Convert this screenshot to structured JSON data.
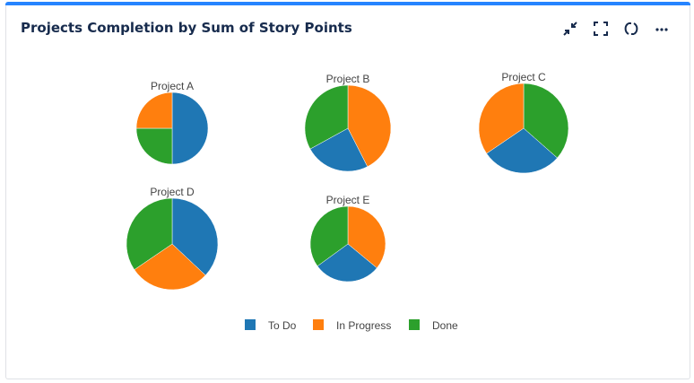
{
  "header": {
    "title": "Projects Completion by Sum of Story Points"
  },
  "toolbar": {
    "icons": [
      "collapse-icon",
      "fullscreen-icon",
      "refresh-icon",
      "more-icon"
    ]
  },
  "chart_data": {
    "type": "pie",
    "title": "",
    "legend": {
      "position": "bottom",
      "entries": [
        "To Do",
        "In Progress",
        "Done"
      ]
    },
    "colors": {
      "To Do": "#1f77b4",
      "In Progress": "#ff7f0e",
      "Done": "#2ca02c"
    },
    "pies": [
      {
        "name": "Project A",
        "slices": [
          {
            "label": "To Do",
            "value": 50
          },
          {
            "label": "Done",
            "value": 25
          },
          {
            "label": "In Progress",
            "value": 25
          }
        ]
      },
      {
        "name": "Project B",
        "slices": [
          {
            "label": "In Progress",
            "value": 42.5
          },
          {
            "label": "To Do",
            "value": 24.5
          },
          {
            "label": "Done",
            "value": 33
          }
        ]
      },
      {
        "name": "Project C",
        "slices": [
          {
            "label": "Done",
            "value": 36.5
          },
          {
            "label": "To Do",
            "value": 29
          },
          {
            "label": "In Progress",
            "value": 34.5
          }
        ]
      },
      {
        "name": "Project D",
        "slices": [
          {
            "label": "To Do",
            "value": 37
          },
          {
            "label": "In Progress",
            "value": 28.5
          },
          {
            "label": "Done",
            "value": 34.5
          }
        ]
      },
      {
        "name": "Project E",
        "slices": [
          {
            "label": "In Progress",
            "value": 36
          },
          {
            "label": "To Do",
            "value": 29
          },
          {
            "label": "Done",
            "value": 35
          }
        ]
      }
    ]
  }
}
